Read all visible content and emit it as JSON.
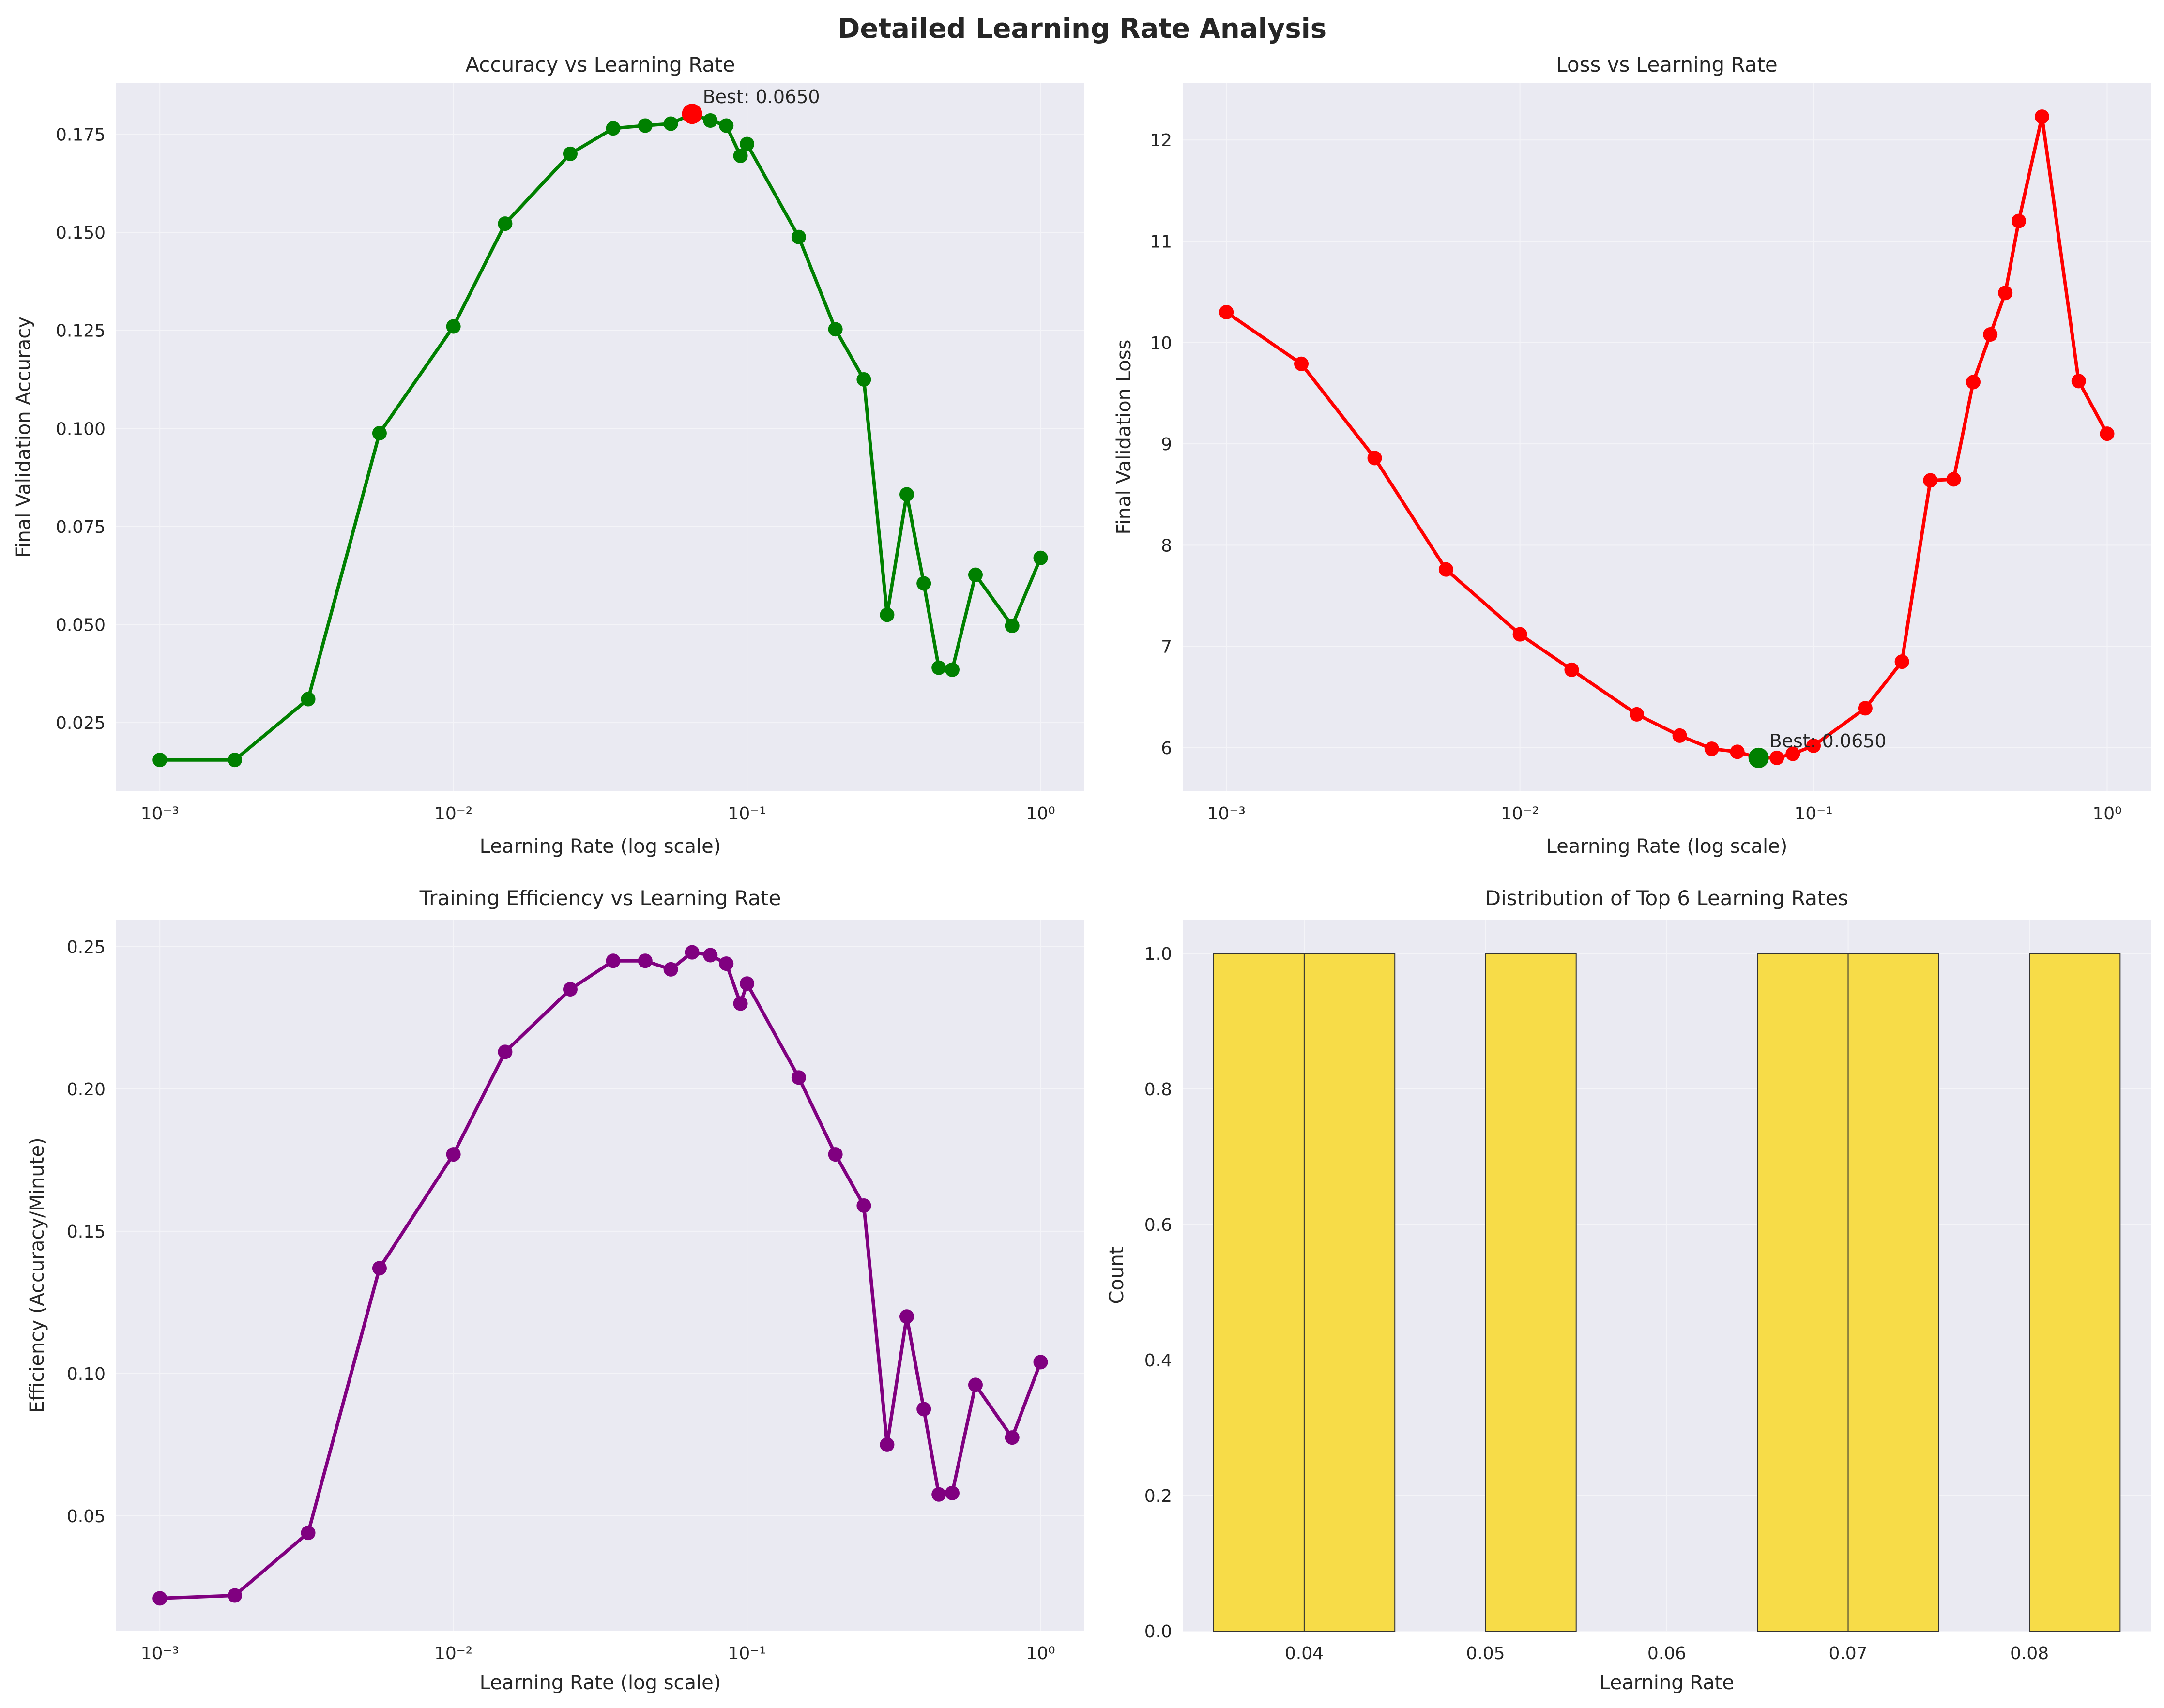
{
  "figure": {
    "title": "Detailed Learning Rate Analysis"
  },
  "chart_data": [
    {
      "type": "line",
      "title": "Accuracy vs Learning Rate",
      "xlabel": "Learning Rate (log scale)",
      "ylabel": "Final Validation Accuracy",
      "xscale": "log",
      "xlim": [
        0.00071,
        1.41
      ],
      "ylim": [
        0.0075,
        0.188
      ],
      "xticks": [
        0.001,
        0.01,
        0.1,
        1
      ],
      "xtick_labels": [
        "10⁻³",
        "10⁻²",
        "10⁻¹",
        "10⁰"
      ],
      "yticks": [
        0.025,
        0.05,
        0.075,
        0.1,
        0.125,
        0.15,
        0.175
      ],
      "ytick_labels": [
        "0.025",
        "0.050",
        "0.075",
        "0.100",
        "0.125",
        "0.150",
        "0.175"
      ],
      "grid": true,
      "color": "#008000",
      "series": [
        {
          "x": [
            0.001,
            0.0018,
            0.0032,
            0.0056,
            0.01,
            0.015,
            0.025,
            0.035,
            0.045,
            0.055,
            0.065,
            0.075,
            0.085,
            0.095,
            0.1,
            0.15,
            0.2,
            0.25,
            0.3,
            0.35,
            0.4,
            0.45,
            0.5,
            0.6,
            0.8,
            1.0
          ],
          "y": [
            0.0155,
            0.0155,
            0.031,
            0.0988,
            0.126,
            0.1522,
            0.17,
            0.1765,
            0.1772,
            0.1777,
            0.1802,
            0.1785,
            0.1772,
            0.1695,
            0.1725,
            0.1488,
            0.1253,
            0.1125,
            0.0525,
            0.0832,
            0.0605,
            0.039,
            0.0385,
            0.0627,
            0.0497,
            0.067
          ]
        }
      ],
      "highlight": {
        "x": 0.065,
        "y": 0.1802,
        "color": "#ff0000",
        "label": "Best: 0.0650"
      }
    },
    {
      "type": "line",
      "title": "Loss vs Learning Rate",
      "xlabel": "Learning Rate (log scale)",
      "ylabel": "Final Validation Loss",
      "xscale": "log",
      "xlim": [
        0.00071,
        1.41
      ],
      "ylim": [
        5.57,
        12.56
      ],
      "xticks": [
        0.001,
        0.01,
        0.1,
        1
      ],
      "xtick_labels": [
        "10⁻³",
        "10⁻²",
        "10⁻¹",
        "10⁰"
      ],
      "yticks": [
        6,
        7,
        8,
        9,
        10,
        11,
        12
      ],
      "ytick_labels": [
        "6",
        "7",
        "8",
        "9",
        "10",
        "11",
        "12"
      ],
      "grid": true,
      "color": "#ff0000",
      "series": [
        {
          "x": [
            0.001,
            0.0018,
            0.0032,
            0.0056,
            0.01,
            0.015,
            0.025,
            0.035,
            0.045,
            0.055,
            0.065,
            0.075,
            0.085,
            0.1,
            0.15,
            0.2,
            0.25,
            0.3,
            0.35,
            0.4,
            0.45,
            0.5,
            0.6,
            0.8,
            1.0
          ],
          "y": [
            10.3,
            9.79,
            8.86,
            7.76,
            7.12,
            6.77,
            6.33,
            6.12,
            5.99,
            5.96,
            5.9,
            5.9,
            5.94,
            6.02,
            6.39,
            6.85,
            8.64,
            8.65,
            9.61,
            10.08,
            10.49,
            11.2,
            12.23,
            9.62,
            9.1
          ]
        }
      ],
      "highlight": {
        "x": 0.065,
        "y": 5.9,
        "color": "#008000",
        "label": "Best: 0.0650"
      }
    },
    {
      "type": "line",
      "title": "Training Efficiency vs Learning Rate",
      "xlabel": "Learning Rate (log scale)",
      "ylabel": "Efficiency (Accuracy/Minute)",
      "xscale": "log",
      "xlim": [
        0.00071,
        1.41
      ],
      "ylim": [
        0.0095,
        0.2595
      ],
      "xticks": [
        0.001,
        0.01,
        0.1,
        1
      ],
      "xtick_labels": [
        "10⁻³",
        "10⁻²",
        "10⁻¹",
        "10⁰"
      ],
      "yticks": [
        0.05,
        0.1,
        0.15,
        0.2,
        0.25
      ],
      "ytick_labels": [
        "0.05",
        "0.10",
        "0.15",
        "0.20",
        "0.25"
      ],
      "grid": true,
      "color": "#800080",
      "series": [
        {
          "x": [
            0.001,
            0.0018,
            0.0032,
            0.0056,
            0.01,
            0.015,
            0.025,
            0.035,
            0.045,
            0.055,
            0.065,
            0.075,
            0.085,
            0.095,
            0.1,
            0.15,
            0.2,
            0.25,
            0.3,
            0.35,
            0.4,
            0.45,
            0.5,
            0.6,
            0.8,
            1.0
          ],
          "y": [
            0.021,
            0.022,
            0.044,
            0.137,
            0.177,
            0.213,
            0.235,
            0.245,
            0.245,
            0.242,
            0.248,
            0.247,
            0.244,
            0.23,
            0.237,
            0.204,
            0.177,
            0.159,
            0.075,
            0.12,
            0.0875,
            0.0575,
            0.058,
            0.096,
            0.0775,
            0.104
          ]
        }
      ]
    },
    {
      "type": "bar",
      "title": "Distribution of Top 6 Learning Rates",
      "xlabel": "Learning Rate",
      "ylabel": "Count",
      "xlim": [
        0.0333,
        0.0867
      ],
      "ylim": [
        0,
        1.05
      ],
      "xticks": [
        0.04,
        0.05,
        0.06,
        0.07,
        0.08
      ],
      "xtick_labels": [
        "0.04",
        "0.05",
        "0.06",
        "0.07",
        "0.08"
      ],
      "yticks": [
        0,
        0.2,
        0.4,
        0.6,
        0.8,
        1.0
      ],
      "ytick_labels": [
        "0.0",
        "0.2",
        "0.4",
        "0.6",
        "0.8",
        "1.0"
      ],
      "grid": true,
      "color": "#f7dc48",
      "bins": [
        {
          "x0": 0.035,
          "x1": 0.04,
          "count": 1
        },
        {
          "x0": 0.04,
          "x1": 0.045,
          "count": 1
        },
        {
          "x0": 0.05,
          "x1": 0.055,
          "count": 1
        },
        {
          "x0": 0.065,
          "x1": 0.07,
          "count": 1
        },
        {
          "x0": 0.07,
          "x1": 0.075,
          "count": 1
        },
        {
          "x0": 0.08,
          "x1": 0.085,
          "count": 1
        }
      ]
    }
  ]
}
